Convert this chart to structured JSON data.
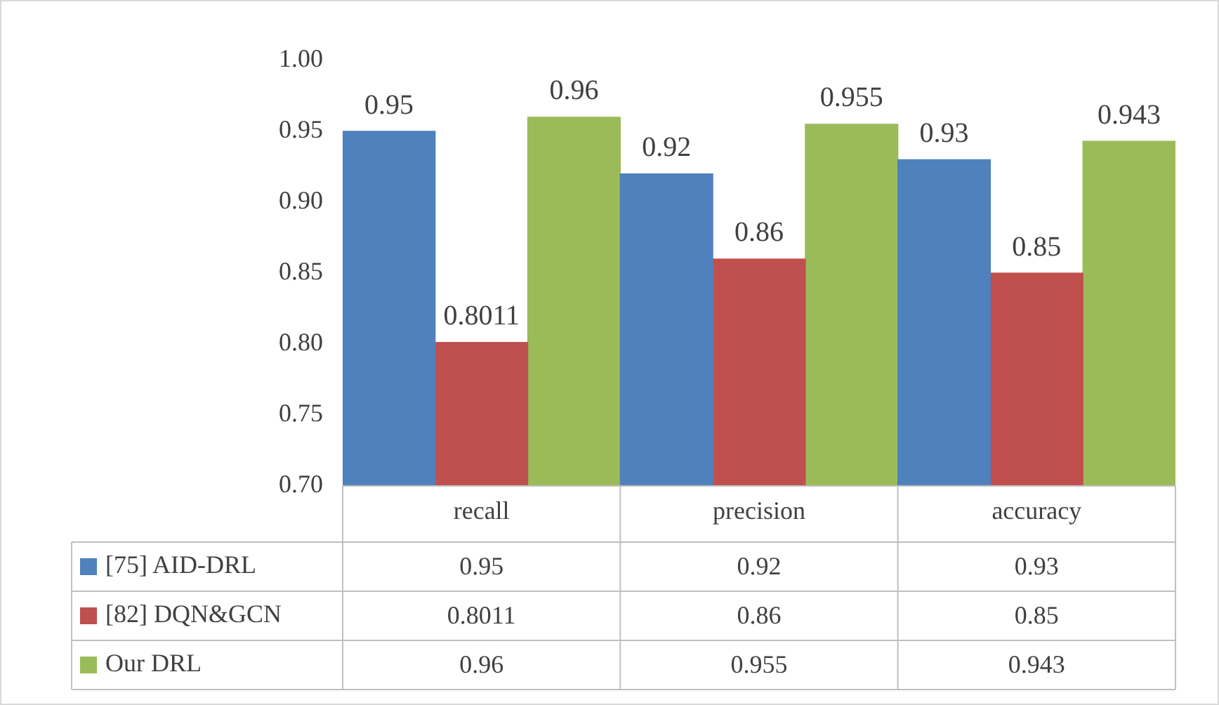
{
  "chart_data": {
    "type": "bar",
    "categories": [
      "recall",
      "precision",
      "accuracy"
    ],
    "series": [
      {
        "name": "[75] AID-DRL",
        "color": "#4f81bd",
        "values": [
          0.95,
          0.92,
          0.93
        ]
      },
      {
        "name": "[82] DQN&GCN",
        "color": "#c0504d",
        "values": [
          0.8011,
          0.86,
          0.85
        ]
      },
      {
        "name": "Our DRL",
        "color": "#9bbb59",
        "values": [
          0.96,
          0.955,
          0.943
        ]
      }
    ],
    "ylim": [
      0.7,
      1.0
    ],
    "yticks": [
      {
        "value": 0.7,
        "label": "0.70"
      },
      {
        "value": 0.75,
        "label": "0.75"
      },
      {
        "value": 0.8,
        "label": "0.80"
      },
      {
        "value": 0.85,
        "label": "0.85"
      },
      {
        "value": 0.9,
        "label": "0.90"
      },
      {
        "value": 0.95,
        "label": "0.95"
      },
      {
        "value": 1.0,
        "label": "1.00"
      }
    ],
    "grid": false,
    "legend": "bottom",
    "data_labels": true,
    "annotations": [
      "0.95",
      "0.92",
      "0.93",
      "0.8011",
      "0.86",
      "0.85",
      "0.96",
      "0.955",
      "0.943"
    ]
  }
}
